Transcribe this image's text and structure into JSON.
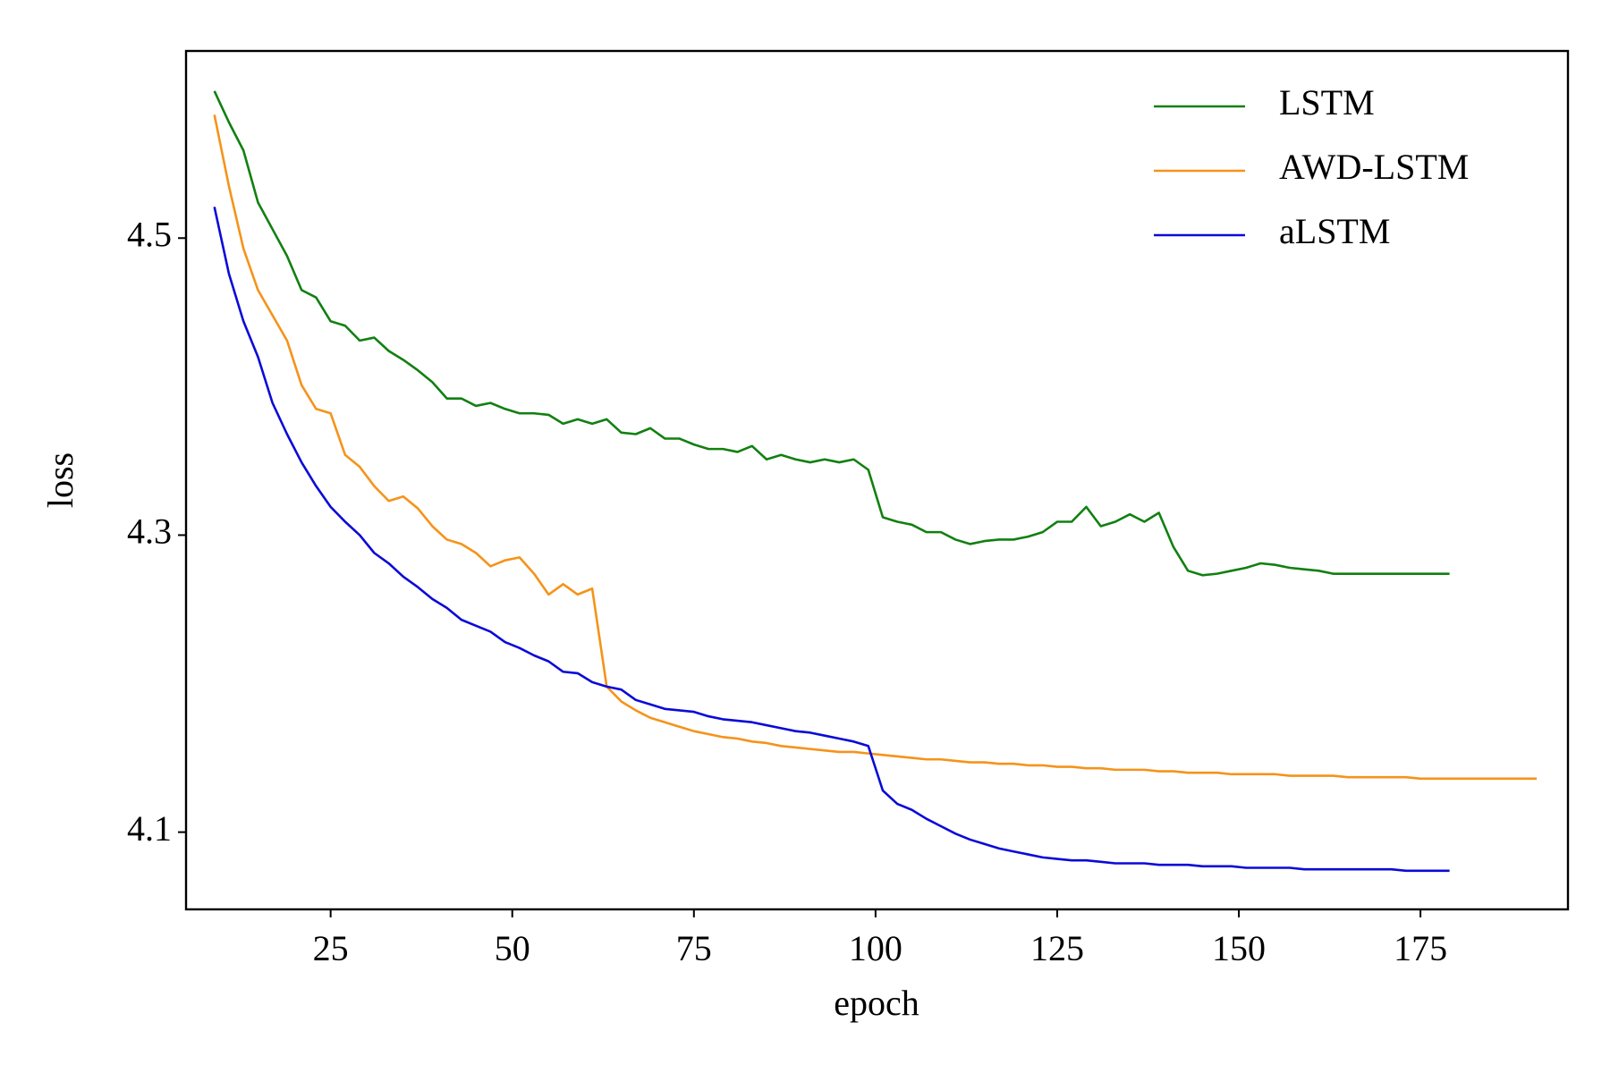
{
  "chart_data": {
    "type": "line",
    "xlabel": "epoch",
    "ylabel": "loss",
    "x": [
      9,
      11,
      13,
      15,
      17,
      19,
      21,
      23,
      25,
      27,
      29,
      31,
      33,
      35,
      37,
      39,
      41,
      43,
      45,
      47,
      49,
      51,
      53,
      55,
      57,
      59,
      61,
      63,
      65,
      67,
      69,
      71,
      73,
      75,
      77,
      79,
      81,
      83,
      85,
      87,
      89,
      91,
      93,
      95,
      97,
      99,
      101,
      103,
      105,
      107,
      109,
      111,
      113,
      115,
      117,
      119,
      121,
      123,
      125,
      127,
      129,
      131,
      133,
      135,
      137,
      139,
      141,
      143,
      145,
      147,
      149,
      151,
      153,
      155,
      157,
      159,
      161,
      163,
      165,
      167,
      169,
      171,
      173,
      175,
      177,
      179,
      181,
      183,
      185,
      187,
      189,
      191
    ],
    "series": [
      {
        "name": "LSTM",
        "color": "#118011",
        "values": [
          4.599,
          4.578,
          4.559,
          4.524,
          4.506,
          4.488,
          4.465,
          4.46,
          4.444,
          4.441,
          4.431,
          4.433,
          4.424,
          4.418,
          4.411,
          4.403,
          4.392,
          4.392,
          4.387,
          4.389,
          4.385,
          4.382,
          4.382,
          4.381,
          4.375,
          4.378,
          4.375,
          4.378,
          4.369,
          4.368,
          4.372,
          4.365,
          4.365,
          4.361,
          4.358,
          4.358,
          4.356,
          4.36,
          4.351,
          4.354,
          4.351,
          4.349,
          4.351,
          4.349,
          4.351,
          4.344,
          4.312,
          4.309,
          4.307,
          4.302,
          4.302,
          4.297,
          4.294,
          4.296,
          4.297,
          4.297,
          4.299,
          4.302,
          4.309,
          4.309,
          4.319,
          4.306,
          4.309,
          4.314,
          4.309,
          4.315,
          4.292,
          4.276,
          4.273,
          4.274,
          4.276,
          4.278,
          4.281,
          4.28,
          4.278,
          4.277,
          4.276,
          4.274,
          4.274,
          4.274,
          4.274,
          4.274,
          4.274,
          4.274,
          4.274,
          4.274,
          null,
          null,
          null,
          null,
          null,
          null
        ]
      },
      {
        "name": "AWD-LSTM",
        "color": "#f5931a",
        "values": [
          4.583,
          4.535,
          4.493,
          4.465,
          4.448,
          4.431,
          4.401,
          4.385,
          4.382,
          4.354,
          4.346,
          4.333,
          4.323,
          4.326,
          4.318,
          4.306,
          4.297,
          4.294,
          4.288,
          4.279,
          4.283,
          4.285,
          4.274,
          4.26,
          4.267,
          4.26,
          4.264,
          4.198,
          4.188,
          4.182,
          4.177,
          4.174,
          4.171,
          4.168,
          4.166,
          4.164,
          4.163,
          4.161,
          4.16,
          4.158,
          4.157,
          4.156,
          4.155,
          4.154,
          4.154,
          4.153,
          4.152,
          4.151,
          4.15,
          4.149,
          4.149,
          4.148,
          4.147,
          4.147,
          4.146,
          4.146,
          4.145,
          4.145,
          4.144,
          4.144,
          4.143,
          4.143,
          4.142,
          4.142,
          4.142,
          4.141,
          4.141,
          4.14,
          4.14,
          4.14,
          4.139,
          4.139,
          4.139,
          4.139,
          4.138,
          4.138,
          4.138,
          4.138,
          4.137,
          4.137,
          4.137,
          4.137,
          4.137,
          4.136,
          4.136,
          4.136,
          4.136,
          4.136,
          4.136,
          4.136,
          4.136,
          4.136
        ]
      },
      {
        "name": "aLSTM",
        "color": "#0a0ad8",
        "values": [
          4.521,
          4.476,
          4.444,
          4.42,
          4.389,
          4.368,
          4.349,
          4.333,
          4.319,
          4.309,
          4.3,
          4.288,
          4.281,
          4.272,
          4.265,
          4.257,
          4.251,
          4.243,
          4.239,
          4.235,
          4.228,
          4.224,
          4.219,
          4.215,
          4.208,
          4.207,
          4.201,
          4.198,
          4.196,
          4.189,
          4.186,
          4.183,
          4.182,
          4.181,
          4.178,
          4.176,
          4.175,
          4.174,
          4.172,
          4.17,
          4.168,
          4.167,
          4.165,
          4.163,
          4.161,
          4.158,
          4.128,
          4.119,
          4.115,
          4.109,
          4.104,
          4.099,
          4.095,
          4.092,
          4.089,
          4.087,
          4.085,
          4.083,
          4.082,
          4.081,
          4.081,
          4.08,
          4.079,
          4.079,
          4.079,
          4.078,
          4.078,
          4.078,
          4.077,
          4.077,
          4.077,
          4.076,
          4.076,
          4.076,
          4.076,
          4.075,
          4.075,
          4.075,
          4.075,
          4.075,
          4.075,
          4.075,
          4.074,
          4.074,
          4.074,
          4.074,
          null,
          null,
          null,
          null,
          null,
          null
        ]
      }
    ],
    "xlim": [
      5.1,
      195.3
    ],
    "ylim": [
      4.048,
      4.626
    ],
    "xticks": [
      25,
      50,
      75,
      100,
      125,
      150,
      175
    ],
    "yticks": [
      4.1,
      4.3,
      4.5
    ],
    "legend": "upper right",
    "grid": false
  }
}
